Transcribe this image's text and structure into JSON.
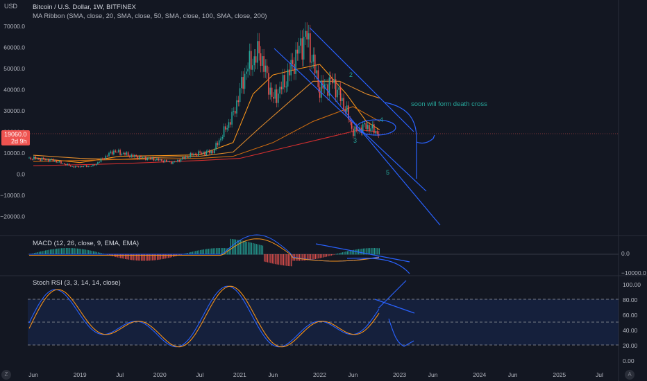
{
  "header": {
    "currency": "USD",
    "title": "Bitcoin / U.S. Dollar, 1W, BITFINEX",
    "indicator": "MA Ribbon (SMA, close, 20, SMA, close, 50, SMA, close, 100, SMA, close, 200)"
  },
  "price_tag": {
    "price": "19060.0",
    "countdown": "2d 9h"
  },
  "annotations": {
    "death_cross": "soon will form death cross",
    "wave_2": "2",
    "wave_3": "3",
    "wave_4": "4",
    "wave_5": "5"
  },
  "macd": {
    "title": "MACD (12, 26, close, 9, EMA, EMA)"
  },
  "rsi": {
    "title": "Stoch RSI (3, 3, 14, 14, close)"
  },
  "buttons": {
    "left": "Z",
    "right": "A"
  },
  "colors": {
    "up": "#26a69a",
    "down": "#ef5350",
    "blue": "#2962ff",
    "orange": "#f7931a",
    "green_text": "#26a69a"
  },
  "chart_data": [
    {
      "type": "line",
      "title": "Bitcoin / U.S. Dollar, 1W, BITFINEX",
      "y_ticks": [
        "70000.0",
        "60000.0",
        "50000.0",
        "40000.0",
        "30000.0",
        "20000.0",
        "10000.0",
        "0.0",
        "−10000.0",
        "−20000.0"
      ],
      "ylim": [
        -23000,
        72000
      ],
      "x_ticks": [
        "Jun",
        "2019",
        "Jul",
        "2020",
        "Jul",
        "2021",
        "Jun",
        "2022",
        "Jun",
        "2023",
        "Jun",
        "2024",
        "Jun",
        "2025",
        "Jul"
      ],
      "series": [
        {
          "name": "BTCUSD",
          "x": [
            "2018-06",
            "2018-09",
            "2018-12",
            "2019-03",
            "2019-06",
            "2019-09",
            "2019-12",
            "2020-03",
            "2020-06",
            "2020-09",
            "2020-12",
            "2021-02",
            "2021-04",
            "2021-06",
            "2021-08",
            "2021-10",
            "2021-11",
            "2022-01",
            "2022-03",
            "2022-05",
            "2022-06",
            "2022-08",
            "2022-10"
          ],
          "values": [
            7500,
            6500,
            3500,
            4000,
            11000,
            8500,
            7200,
            5500,
            9500,
            10800,
            28000,
            50000,
            58000,
            35000,
            45000,
            60000,
            66000,
            40000,
            44000,
            30000,
            20000,
            23000,
            19060
          ]
        },
        {
          "name": "SMA 20",
          "x": [
            "2018-06",
            "2019-01",
            "2019-07",
            "2020-01",
            "2020-07",
            "2020-12",
            "2021-03",
            "2021-06",
            "2021-10",
            "2022-01",
            "2022-05",
            "2022-08",
            "2022-10"
          ],
          "values": [
            7800,
            5500,
            8500,
            8800,
            9200,
            15000,
            38000,
            47000,
            50000,
            52000,
            38000,
            25000,
            21000
          ]
        },
        {
          "name": "SMA 50",
          "x": [
            "2018-06",
            "2019-01",
            "2019-07",
            "2020-01",
            "2020-07",
            "2020-12",
            "2021-04",
            "2021-08",
            "2021-12",
            "2022-04",
            "2022-08",
            "2022-10"
          ],
          "values": [
            9000,
            7500,
            7000,
            8000,
            8500,
            10500,
            22000,
            33000,
            44000,
            44000,
            38000,
            36000
          ]
        },
        {
          "name": "SMA 100",
          "x": [
            "2018-06",
            "2019-07",
            "2020-07",
            "2020-12",
            "2021-06",
            "2021-12",
            "2022-06",
            "2022-10"
          ],
          "values": [
            6000,
            7000,
            7500,
            8500,
            15000,
            25000,
            32000,
            25000
          ]
        },
        {
          "name": "SMA 200",
          "x": [
            "2018-06",
            "2019-07",
            "2020-07",
            "2021-01",
            "2021-07",
            "2022-01",
            "2022-07",
            "2022-10"
          ],
          "values": [
            4000,
            5000,
            6500,
            7500,
            12000,
            16500,
            21000,
            20000
          ]
        }
      ]
    },
    {
      "type": "bar",
      "title": "MACD (12, 26, close, 9, EMA, EMA)",
      "y_ticks": [
        "0.0",
        "−10000.0"
      ]
    },
    {
      "type": "line",
      "title": "Stoch RSI (3, 3, 14, 14, close)",
      "y_ticks": [
        "100.00",
        "80.00",
        "60.00",
        "40.00",
        "20.00",
        "0.00"
      ],
      "ylim": [
        0,
        100
      ]
    }
  ]
}
